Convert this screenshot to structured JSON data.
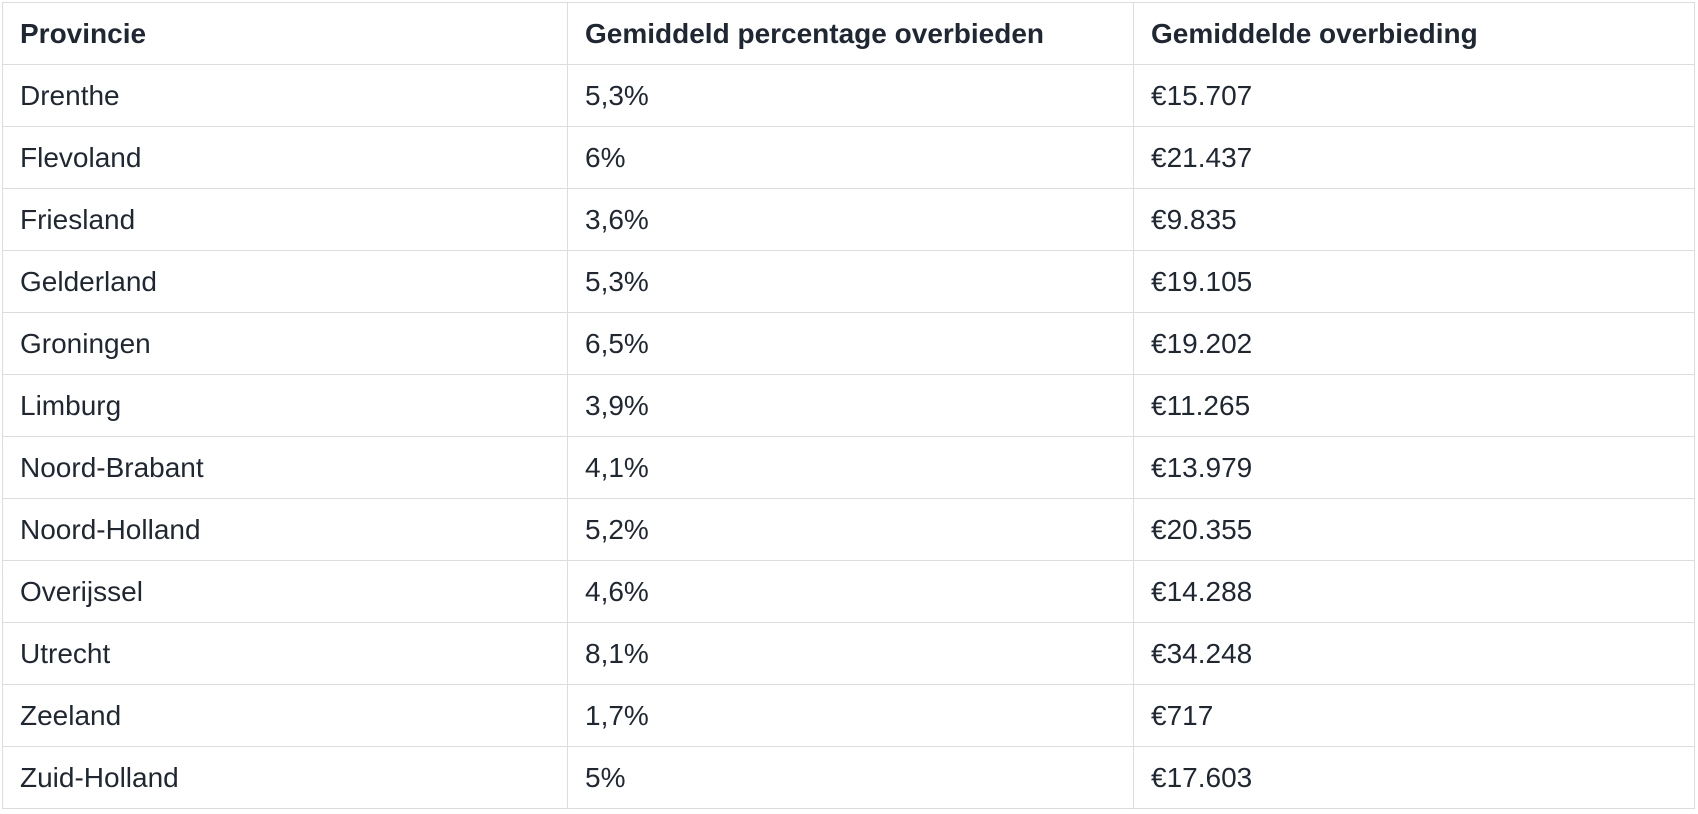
{
  "table": {
    "headers": [
      "Provincie",
      "Gemiddeld percentage overbieden",
      "Gemiddelde overbieding"
    ],
    "rows": [
      [
        "Drenthe",
        "5,3%",
        "€15.707"
      ],
      [
        "Flevoland",
        "6%",
        "€21.437"
      ],
      [
        "Friesland",
        "3,6%",
        "€9.835"
      ],
      [
        "Gelderland",
        "5,3%",
        "€19.105"
      ],
      [
        "Groningen",
        "6,5%",
        "€19.202"
      ],
      [
        "Limburg",
        "3,9%",
        "€11.265"
      ],
      [
        "Noord-Brabant",
        "4,1%",
        "€13.979"
      ],
      [
        "Noord-Holland",
        "5,2%",
        "€20.355"
      ],
      [
        "Overijssel",
        "4,6%",
        "€14.288"
      ],
      [
        "Utrecht",
        "8,1%",
        "€34.248"
      ],
      [
        "Zeeland",
        "1,7%",
        "€717"
      ],
      [
        "Zuid-Holland",
        "5%",
        "€17.603"
      ]
    ]
  },
  "colors": {
    "text": "#1f2733",
    "border": "#dcdde3",
    "background": "#ffffff"
  }
}
